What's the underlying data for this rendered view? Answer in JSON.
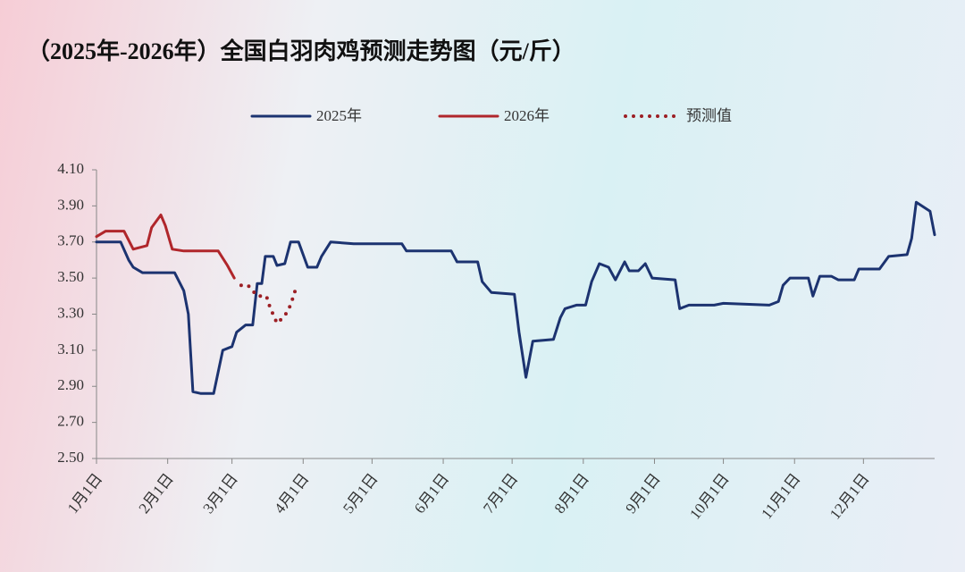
{
  "chart_data": {
    "type": "line",
    "title": "（2025年-2026年）全国白羽肉鸡预测走势图（元/斤）",
    "xlim": [
      0,
      365
    ],
    "xticks": [
      {
        "value": 0,
        "label": "1月1日"
      },
      {
        "value": 31,
        "label": "2月1日"
      },
      {
        "value": 59,
        "label": "3月1日"
      },
      {
        "value": 90,
        "label": "4月1日"
      },
      {
        "value": 120,
        "label": "5月1日"
      },
      {
        "value": 151,
        "label": "6月1日"
      },
      {
        "value": 181,
        "label": "7月1日"
      },
      {
        "value": 212,
        "label": "8月1日"
      },
      {
        "value": 243,
        "label": "9月1日"
      },
      {
        "value": 273,
        "label": "10月1日"
      },
      {
        "value": 304,
        "label": "11月1日"
      },
      {
        "value": 334,
        "label": "12月1日"
      }
    ],
    "ylim": [
      2.5,
      4.1
    ],
    "yticks": [
      {
        "value": 2.5,
        "label": "2.50"
      },
      {
        "value": 2.7,
        "label": "2.70"
      },
      {
        "value": 2.9,
        "label": "2.90"
      },
      {
        "value": 3.1,
        "label": "3.10"
      },
      {
        "value": 3.3,
        "label": "3.30"
      },
      {
        "value": 3.5,
        "label": "3.50"
      },
      {
        "value": 3.7,
        "label": "3.70"
      },
      {
        "value": 3.9,
        "label": "3.90"
      },
      {
        "value": 4.1,
        "label": "4.10"
      }
    ],
    "grid": false,
    "series": [
      {
        "name": "2025年",
        "color": "#1c3370",
        "style": "solid",
        "x": [
          0,
          10.5,
          14,
          16,
          20,
          34,
          38,
          40,
          42,
          45.5,
          51,
          55,
          59,
          61,
          65,
          68,
          70,
          72,
          73.5,
          77,
          78.6,
          82,
          84.5,
          88,
          92,
          96,
          98,
          102,
          112,
          121,
          133,
          135,
          154.5,
          157,
          166,
          168,
          172,
          182,
          184,
          187,
          190,
          199,
          202,
          204,
          209,
          213,
          215.6,
          219,
          223,
          226,
          230,
          232,
          236,
          239,
          242,
          252,
          254,
          258,
          269,
          273,
          293,
          297,
          299,
          302,
          310,
          312,
          315,
          320,
          323,
          330,
          332,
          341,
          345,
          353,
          355,
          357,
          363,
          365
        ],
        "values": [
          3.7,
          3.7,
          3.6,
          3.56,
          3.53,
          3.53,
          3.43,
          3.3,
          2.87,
          2.86,
          2.86,
          3.1,
          3.12,
          3.2,
          3.24,
          3.24,
          3.47,
          3.47,
          3.62,
          3.62,
          3.57,
          3.58,
          3.7,
          3.7,
          3.56,
          3.56,
          3.62,
          3.7,
          3.69,
          3.69,
          3.69,
          3.65,
          3.65,
          3.59,
          3.59,
          3.48,
          3.42,
          3.41,
          3.2,
          2.95,
          3.15,
          3.16,
          3.28,
          3.33,
          3.35,
          3.35,
          3.48,
          3.58,
          3.56,
          3.49,
          3.59,
          3.54,
          3.54,
          3.58,
          3.5,
          3.49,
          3.33,
          3.35,
          3.35,
          3.36,
          3.35,
          3.37,
          3.46,
          3.5,
          3.5,
          3.4,
          3.51,
          3.51,
          3.49,
          3.49,
          3.55,
          3.55,
          3.62,
          3.63,
          3.72,
          3.92,
          3.87,
          3.74
        ]
      },
      {
        "name": "2026年",
        "color": "#b0262b",
        "style": "solid",
        "x": [
          0,
          4,
          12,
          16,
          22,
          24,
          28,
          30,
          33,
          38,
          53,
          57,
          60
        ],
        "values": [
          3.73,
          3.76,
          3.76,
          3.66,
          3.68,
          3.78,
          3.85,
          3.79,
          3.66,
          3.65,
          3.65,
          3.57,
          3.5
        ]
      },
      {
        "name": "预测值",
        "color": "#9c1f24",
        "style": "dotted",
        "x": [
          63,
          66,
          70,
          74,
          75.5,
          78.6,
          82,
          84.5,
          87
        ],
        "values": [
          3.46,
          3.46,
          3.4,
          3.4,
          3.34,
          3.25,
          3.29,
          3.35,
          3.45
        ]
      }
    ]
  }
}
